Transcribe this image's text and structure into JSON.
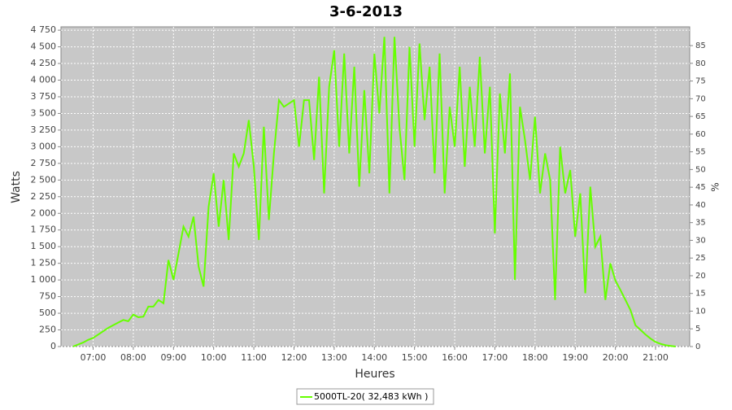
{
  "chart_data": {
    "type": "line",
    "title": "3-6-2013",
    "x_label": "Heures",
    "y_label": "Watts",
    "y2_label": "%",
    "x": [
      6.5,
      6.625,
      6.75,
      6.875,
      7,
      7.125,
      7.25,
      7.375,
      7.5,
      7.625,
      7.75,
      7.875,
      8,
      8.125,
      8.25,
      8.375,
      8.5,
      8.625,
      8.75,
      8.875,
      9,
      9.125,
      9.25,
      9.375,
      9.5,
      9.625,
      9.75,
      9.875,
      10,
      10.125,
      10.25,
      10.375,
      10.5,
      10.625,
      10.75,
      10.875,
      11,
      11.125,
      11.25,
      11.375,
      11.5,
      11.625,
      11.75,
      11.875,
      12,
      12.125,
      12.25,
      12.375,
      12.5,
      12.625,
      12.75,
      12.875,
      13,
      13.125,
      13.25,
      13.375,
      13.5,
      13.625,
      13.75,
      13.875,
      14,
      14.125,
      14.25,
      14.375,
      14.5,
      14.625,
      14.75,
      14.875,
      15,
      15.125,
      15.25,
      15.375,
      15.5,
      15.625,
      15.75,
      15.875,
      16,
      16.125,
      16.25,
      16.375,
      16.5,
      16.625,
      16.75,
      16.875,
      17,
      17.125,
      17.25,
      17.375,
      17.5,
      17.625,
      17.75,
      17.875,
      18,
      18.125,
      18.25,
      18.375,
      18.5,
      18.625,
      18.75,
      18.875,
      19,
      19.125,
      19.25,
      19.375,
      19.5,
      19.625,
      19.75,
      19.875,
      20,
      20.125,
      20.25,
      20.375,
      20.5,
      20.625,
      20.75,
      20.875,
      21,
      21.125,
      21.25,
      21.375,
      21.5
    ],
    "series": [
      {
        "name": "5000TL-20( 32,483 kWh )",
        "color": "#66ff00",
        "values": [
          0,
          30,
          60,
          100,
          130,
          180,
          230,
          280,
          320,
          360,
          400,
          380,
          480,
          440,
          450,
          600,
          600,
          700,
          650,
          1300,
          1000,
          1400,
          1800,
          1650,
          1950,
          1200,
          900,
          2100,
          2600,
          1800,
          2500,
          1600,
          2900,
          2700,
          2900,
          3400,
          2700,
          1600,
          3300,
          1900,
          2900,
          3700,
          3600,
          3650,
          3700,
          3000,
          3700,
          3700,
          2800,
          4050,
          2300,
          3900,
          4450,
          3000,
          4400,
          2900,
          4200,
          2400,
          3850,
          2600,
          4400,
          3500,
          4650,
          2300,
          4650,
          3300,
          2500,
          4500,
          3000,
          4550,
          3400,
          4200,
          2600,
          4400,
          2300,
          3600,
          3000,
          4200,
          2700,
          3900,
          3000,
          4350,
          2900,
          3900,
          1700,
          3800,
          2900,
          4100,
          1000,
          3600,
          3100,
          2500,
          3450,
          2300,
          2900,
          2500,
          700,
          3000,
          2300,
          2650,
          1650,
          2300,
          800,
          2400,
          1500,
          1650,
          700,
          1250,
          990,
          850,
          700,
          550,
          320,
          250,
          180,
          120,
          70,
          40,
          20,
          10,
          0
        ]
      }
    ],
    "xlim": [
      6.2,
      21.85
    ],
    "xticks": [
      {
        "value": 7,
        "label": "07:00"
      },
      {
        "value": 8,
        "label": "08:00"
      },
      {
        "value": 9,
        "label": "09:00"
      },
      {
        "value": 10,
        "label": "10:00"
      },
      {
        "value": 11,
        "label": "11:00"
      },
      {
        "value": 12,
        "label": "12:00"
      },
      {
        "value": 13,
        "label": "13:00"
      },
      {
        "value": 14,
        "label": "14:00"
      },
      {
        "value": 15,
        "label": "15:00"
      },
      {
        "value": 16,
        "label": "16:00"
      },
      {
        "value": 17,
        "label": "17:00"
      },
      {
        "value": 18,
        "label": "18:00"
      },
      {
        "value": 19,
        "label": "19:00"
      },
      {
        "value": 20,
        "label": "20:00"
      },
      {
        "value": 21,
        "label": "21:00"
      }
    ],
    "ylim": [
      0,
      4800
    ],
    "yticks": [
      0,
      250,
      500,
      750,
      {
        "value": 1000,
        "label": "1 000"
      },
      {
        "value": 1250,
        "label": "1 250"
      },
      {
        "value": 1500,
        "label": "1 500"
      },
      {
        "value": 1750,
        "label": "1 750"
      },
      {
        "value": 2000,
        "label": "2 000"
      },
      {
        "value": 2250,
        "label": "2 250"
      },
      {
        "value": 2500,
        "label": "2 500"
      },
      {
        "value": 2750,
        "label": "2 750"
      },
      {
        "value": 3000,
        "label": "3 000"
      },
      {
        "value": 3250,
        "label": "3 250"
      },
      {
        "value": 3500,
        "label": "3 500"
      },
      {
        "value": 3750,
        "label": "3 750"
      },
      {
        "value": 4000,
        "label": "4 000"
      },
      {
        "value": 4250,
        "label": "4 250"
      },
      {
        "value": 4500,
        "label": "4 500"
      },
      {
        "value": 4750,
        "label": "4 750"
      }
    ],
    "y2lim": [
      0,
      90.3
    ],
    "y2ticks": [
      0,
      5,
      10,
      15,
      20,
      25,
      30,
      35,
      40,
      45,
      50,
      55,
      60,
      65,
      70,
      75,
      80,
      85
    ],
    "grid": true,
    "legend": "bottom"
  }
}
